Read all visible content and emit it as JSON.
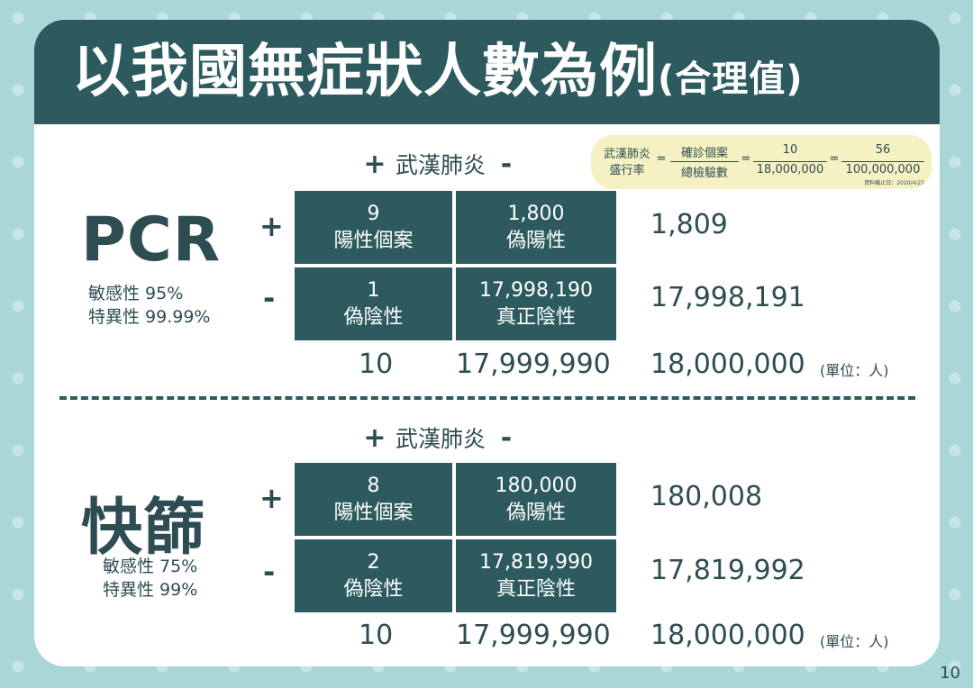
{
  "title": {
    "main": "以我國無症狀人數為例",
    "sub": "(合理值)"
  },
  "formula": {
    "prevalence_line1": "武漢肺炎",
    "prevalence_line2": "盛行率",
    "eq": "=",
    "cases_num": "確診個案",
    "cases_den": "總檢驗數",
    "frac1_num": "10",
    "frac1_den": "18,000,000",
    "frac2_num": "56",
    "frac2_den": "100,000,000",
    "note": "資料截止日：2020/4/27"
  },
  "column_header": {
    "plus": "+",
    "label": "武漢肺炎",
    "minus": "-"
  },
  "unit_label": "(單位：人)",
  "sections": [
    {
      "label": "PCR",
      "sensitivity": "敏感性 95%",
      "specificity": "特異性 99.99%",
      "row_plus": "+",
      "row_minus": "-",
      "cells": [
        {
          "value": "9",
          "label": "陽性個案"
        },
        {
          "value": "1,800",
          "label": "偽陽性"
        },
        {
          "value": "1",
          "label": "偽陰性"
        },
        {
          "value": "17,998,190",
          "label": "真正陰性"
        }
      ],
      "row_totals": [
        "1,809",
        "17,998,191"
      ],
      "col_totals": [
        "10",
        "17,999,990"
      ],
      "grand_total": "18,000,000"
    },
    {
      "label": "快篩",
      "sensitivity": "敏感性 75%",
      "specificity": "特異性 99%",
      "row_plus": "+",
      "row_minus": "-",
      "cells": [
        {
          "value": "8",
          "label": "陽性個案"
        },
        {
          "value": "180,000",
          "label": "偽陽性"
        },
        {
          "value": "2",
          "label": "偽陰性"
        },
        {
          "value": "17,819,990",
          "label": "真正陰性"
        }
      ],
      "row_totals": [
        "180,008",
        "17,819,992"
      ],
      "col_totals": [
        "10",
        "17,999,990"
      ],
      "grand_total": "18,000,000"
    }
  ],
  "page_number": "10"
}
